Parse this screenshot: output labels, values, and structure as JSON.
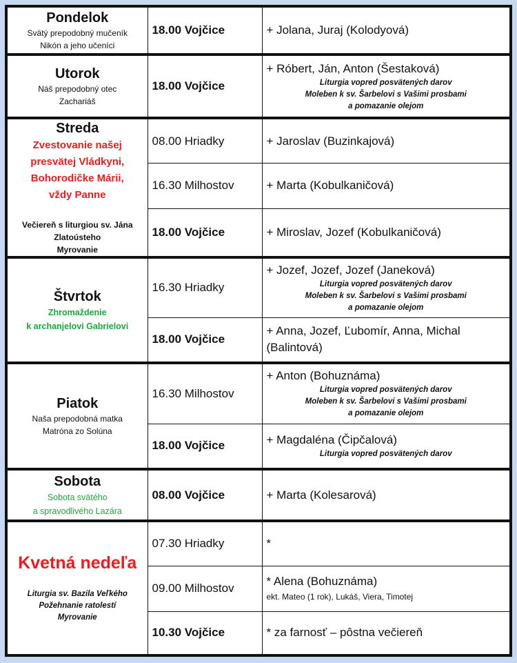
{
  "colors": {
    "background": "#c6d9f0",
    "feast_red": "#ee1c1c",
    "memorial_green": "#1aaa3c"
  },
  "days": [
    {
      "name": "Pondelok",
      "subtitle": [
        "Svätý prepodobný mučeník",
        "Nikón a jeho učeníci"
      ],
      "services": [
        {
          "time": "18.00 Vojčice",
          "intention": "+ Jolana, Juraj (Kolodyová)"
        }
      ]
    },
    {
      "name": "Utorok",
      "subtitle": [
        "Náš prepodobný otec",
        "Zachariáš"
      ],
      "services": [
        {
          "time": "18.00 Vojčice",
          "intention": "+ Róbert, Ján, Anton (Šestaková)",
          "notes": [
            "Liturgia vopred posvätených darov",
            "Moleben k sv. Šarbelovi s Vašimi prosbami",
            "a pomazanie olejom"
          ]
        }
      ]
    },
    {
      "name": "Streda",
      "feast": [
        "Zvestovanie našej",
        "presvätej Vládkyni,",
        "Bohorodičke Márii,",
        "vždy Panne"
      ],
      "extra": [
        "Večiereň s liturgiou sv. Jána",
        "Zlatoústeho",
        "Myrovanie"
      ],
      "services": [
        {
          "time": "08.00 Hriadky",
          "intention": "+ Jaroslav (Buzinkajová)"
        },
        {
          "time": "16.30 Milhostov",
          "intention": "+ Marta (Kobulkaničová)"
        },
        {
          "time": "18.00 Vojčice",
          "intention": "+ Miroslav, Jozef (Kobulkaničová)"
        }
      ]
    },
    {
      "name": "Štvrtok",
      "subtitle": [
        "Zhromaždenie",
        "k archanjelovi Gabrielovi"
      ],
      "services": [
        {
          "time": "16.30 Hriadky",
          "intention": "+ Jozef, Jozef, Jozef (Janeková)",
          "notes": [
            "Liturgia vopred posvätených darov",
            "Moleben k sv. Šarbelovi s Vašimi prosbami",
            "a pomazanie olejom"
          ]
        },
        {
          "time": "18.00 Vojčice",
          "intention": "+ Anna, Jozef, Ľubomír, Anna, Michal (Balintová)"
        }
      ]
    },
    {
      "name": "Piatok",
      "subtitle": [
        "Naša prepodobná matka",
        "Matróna zo Solúna"
      ],
      "services": [
        {
          "time": "16.30 Milhostov",
          "intention": "+ Anton (Bohuznáma)",
          "notes": [
            "Liturgia vopred posvätených darov",
            "Moleben k sv. Šarbelovi s Vašimi prosbami",
            "a pomazanie olejom"
          ]
        },
        {
          "time": "18.00 Vojčice",
          "intention": "+ Magdaléna (Čipčalová)",
          "notes": [
            "Liturgia vopred posvätených darov"
          ]
        }
      ]
    },
    {
      "name": "Sobota",
      "subtitle": [
        "Sobota svätého",
        "a spravodlivého Lazára"
      ],
      "services": [
        {
          "time": "08.00 Vojčice",
          "intention": "+ Marta (Kolesarová)"
        }
      ]
    },
    {
      "name": "Kvetná nedeľa",
      "extra": [
        "Liturgia sv. Bazila Veľkého",
        "Požehnanie ratolestí",
        "Myrovanie"
      ],
      "services": [
        {
          "time": "07.30 Hriadky",
          "intention": "*"
        },
        {
          "time": "09.00 Milhostov",
          "intention": "* Alena (Bohuznáma)",
          "extra": "ekt. Mateo (1 rok), Lukáš, Viera, Timotej"
        },
        {
          "time": "10.30 Vojčice",
          "intention": "* za farnosť – pôstna večiereň"
        }
      ]
    }
  ]
}
